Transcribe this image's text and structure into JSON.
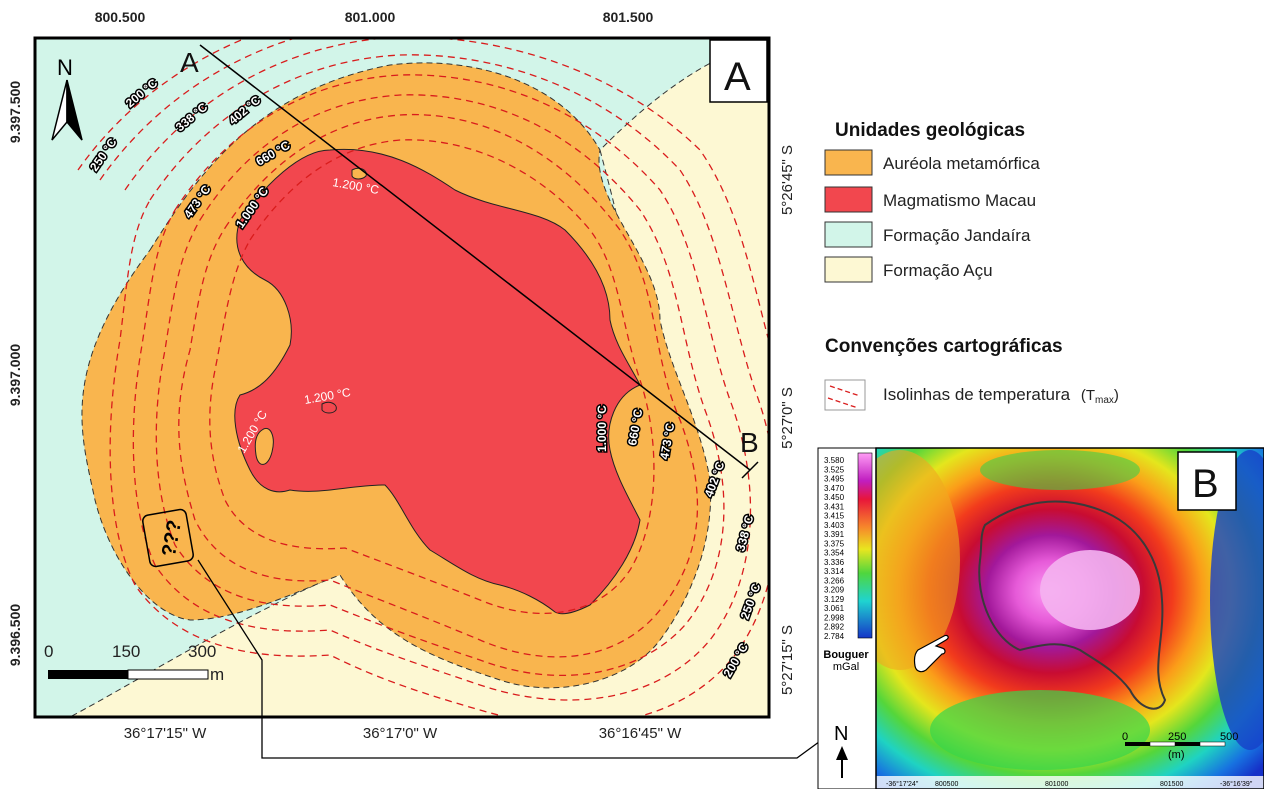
{
  "map_a": {
    "panel_label": "A",
    "north_label": "N",
    "profile_start": "A",
    "profile_end": "B",
    "unknown_label": "???",
    "top_ticks": [
      "800.500",
      "801.000",
      "801.500"
    ],
    "left_ticks": [
      "9.397.500",
      "9.397.000",
      "9.396.500"
    ],
    "bottom_ticks": [
      "36°17'15\"  W",
      "36°17'0\"  W",
      "36°16'45\"  W"
    ],
    "right_ticks": [
      "5°26'45\" S",
      "5°27'0\" S",
      "5°27'15\" S"
    ],
    "scale": {
      "l0": "0",
      "l1": "150",
      "l2": "300",
      "unit": "m"
    },
    "isotherms_left": [
      "200 °C",
      "250 °C",
      "338 °C",
      "402 °C",
      "473 °C",
      "660 °C",
      "1.000 °C"
    ],
    "isotherms_right": [
      "1.000 °C",
      "660 °C",
      "473 °C",
      "402 °C",
      "338 °C",
      "250 °C",
      "200 °C"
    ],
    "intrusion_labels": [
      "1.200 °C",
      "1.200 °C",
      "1.200 °C"
    ]
  },
  "legend": {
    "units_title": "Unidades geológicas",
    "units": [
      {
        "label": "Auréola metamórfica",
        "color": "#f9b54e"
      },
      {
        "label": "Magmatismo Macau",
        "color": "#f2474e"
      },
      {
        "label": "Formação  Jandaíra",
        "color": "#d2f5e9"
      },
      {
        "label": "Formação  Açu",
        "color": "#fdf8d3"
      }
    ],
    "conventions_title": "Convenções cartográficas",
    "isoline_label": "Isolinhas de temperatura",
    "isoline_sym": "(T",
    "isoline_sub": "max",
    "isoline_end": ")"
  },
  "map_b": {
    "panel_label": "B",
    "north_label": "N",
    "colorbar_values": [
      "3.580",
      "3.525",
      "3.495",
      "3.470",
      "3.450",
      "3.431",
      "3.415",
      "3.403",
      "3.391",
      "3.375",
      "3.354",
      "3.336",
      "3.314",
      "3.266",
      "3.209",
      "3.129",
      "3.061",
      "2.998",
      "2.892",
      "2.784"
    ],
    "colorbar_title": "Bouguer",
    "colorbar_unit": "mGal",
    "scale": {
      "l0": "0",
      "l1": "250",
      "l2": "500",
      "unit": "(m)"
    },
    "bottom_ticks": [
      "-36°17'24\"",
      "800500",
      "801000",
      "801500",
      "-36°16'39\""
    ]
  }
}
